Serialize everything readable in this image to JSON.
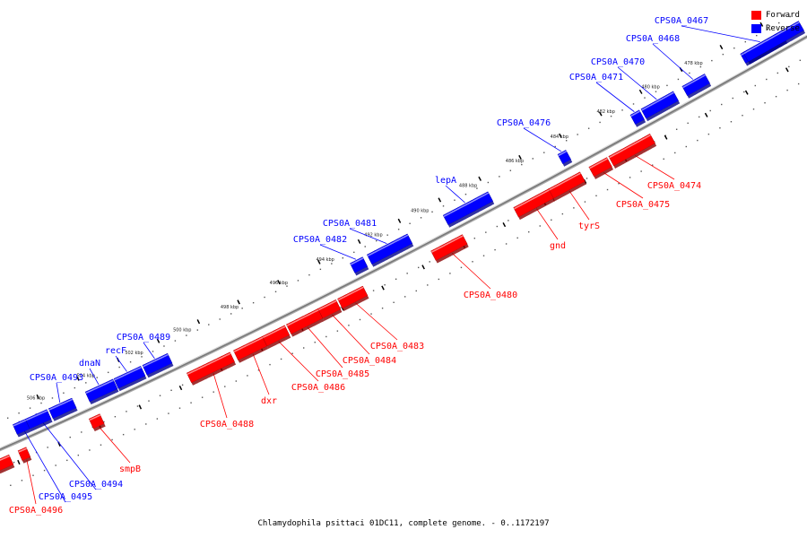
{
  "title": "Chlamydophila psittaci 01DC11, complete genome. - 0..1172197",
  "legend": [
    {
      "label": "Forward",
      "color": "#ff0000"
    },
    {
      "label": "Reverse",
      "color": "#0000ff"
    }
  ],
  "colors": {
    "forward": "#ff0000",
    "reverse": "#0000ff",
    "backbone": "#888888"
  },
  "kbp_ticks": [
    "478 kbp",
    "480 kbp",
    "482 kbp",
    "484 kbp",
    "486 kbp",
    "488 kbp",
    "490 kbp",
    "492 kbp",
    "494 kbp",
    "496 kbp",
    "498 kbp",
    "500 kbp",
    "502 kbp",
    "504 kbp",
    "506 kbp"
  ],
  "genes": [
    {
      "name": "CPS0A_0467",
      "strand": "reverse"
    },
    {
      "name": "CPS0A_0468",
      "strand": "reverse"
    },
    {
      "name": "CPS0A_0470",
      "strand": "reverse"
    },
    {
      "name": "CPS0A_0471",
      "strand": "reverse"
    },
    {
      "name": "CPS0A_0476",
      "strand": "reverse"
    },
    {
      "name": "lepA",
      "strand": "reverse"
    },
    {
      "name": "CPS0A_0481",
      "strand": "reverse"
    },
    {
      "name": "CPS0A_0482",
      "strand": "reverse"
    },
    {
      "name": "CPS0A_0489",
      "strand": "reverse"
    },
    {
      "name": "recF",
      "strand": "reverse"
    },
    {
      "name": "dnaN",
      "strand": "reverse"
    },
    {
      "name": "CPS0A_0493",
      "strand": "reverse"
    },
    {
      "name": "CPS0A_0494",
      "strand": "reverse"
    },
    {
      "name": "CPS0A_0495",
      "strand": "reverse"
    },
    {
      "name": "CPS0A_0474",
      "strand": "forward"
    },
    {
      "name": "CPS0A_0475",
      "strand": "forward"
    },
    {
      "name": "tyrS",
      "strand": "forward"
    },
    {
      "name": "gnd",
      "strand": "forward"
    },
    {
      "name": "CPS0A_0480",
      "strand": "forward"
    },
    {
      "name": "CPS0A_0483",
      "strand": "forward"
    },
    {
      "name": "CPS0A_0484",
      "strand": "forward"
    },
    {
      "name": "CPS0A_0485",
      "strand": "forward"
    },
    {
      "name": "CPS0A_0486",
      "strand": "forward"
    },
    {
      "name": "dxr",
      "strand": "forward"
    },
    {
      "name": "CPS0A_0488",
      "strand": "forward"
    },
    {
      "name": "smpB",
      "strand": "forward"
    },
    {
      "name": "CPS0A_0496",
      "strand": "forward"
    }
  ]
}
